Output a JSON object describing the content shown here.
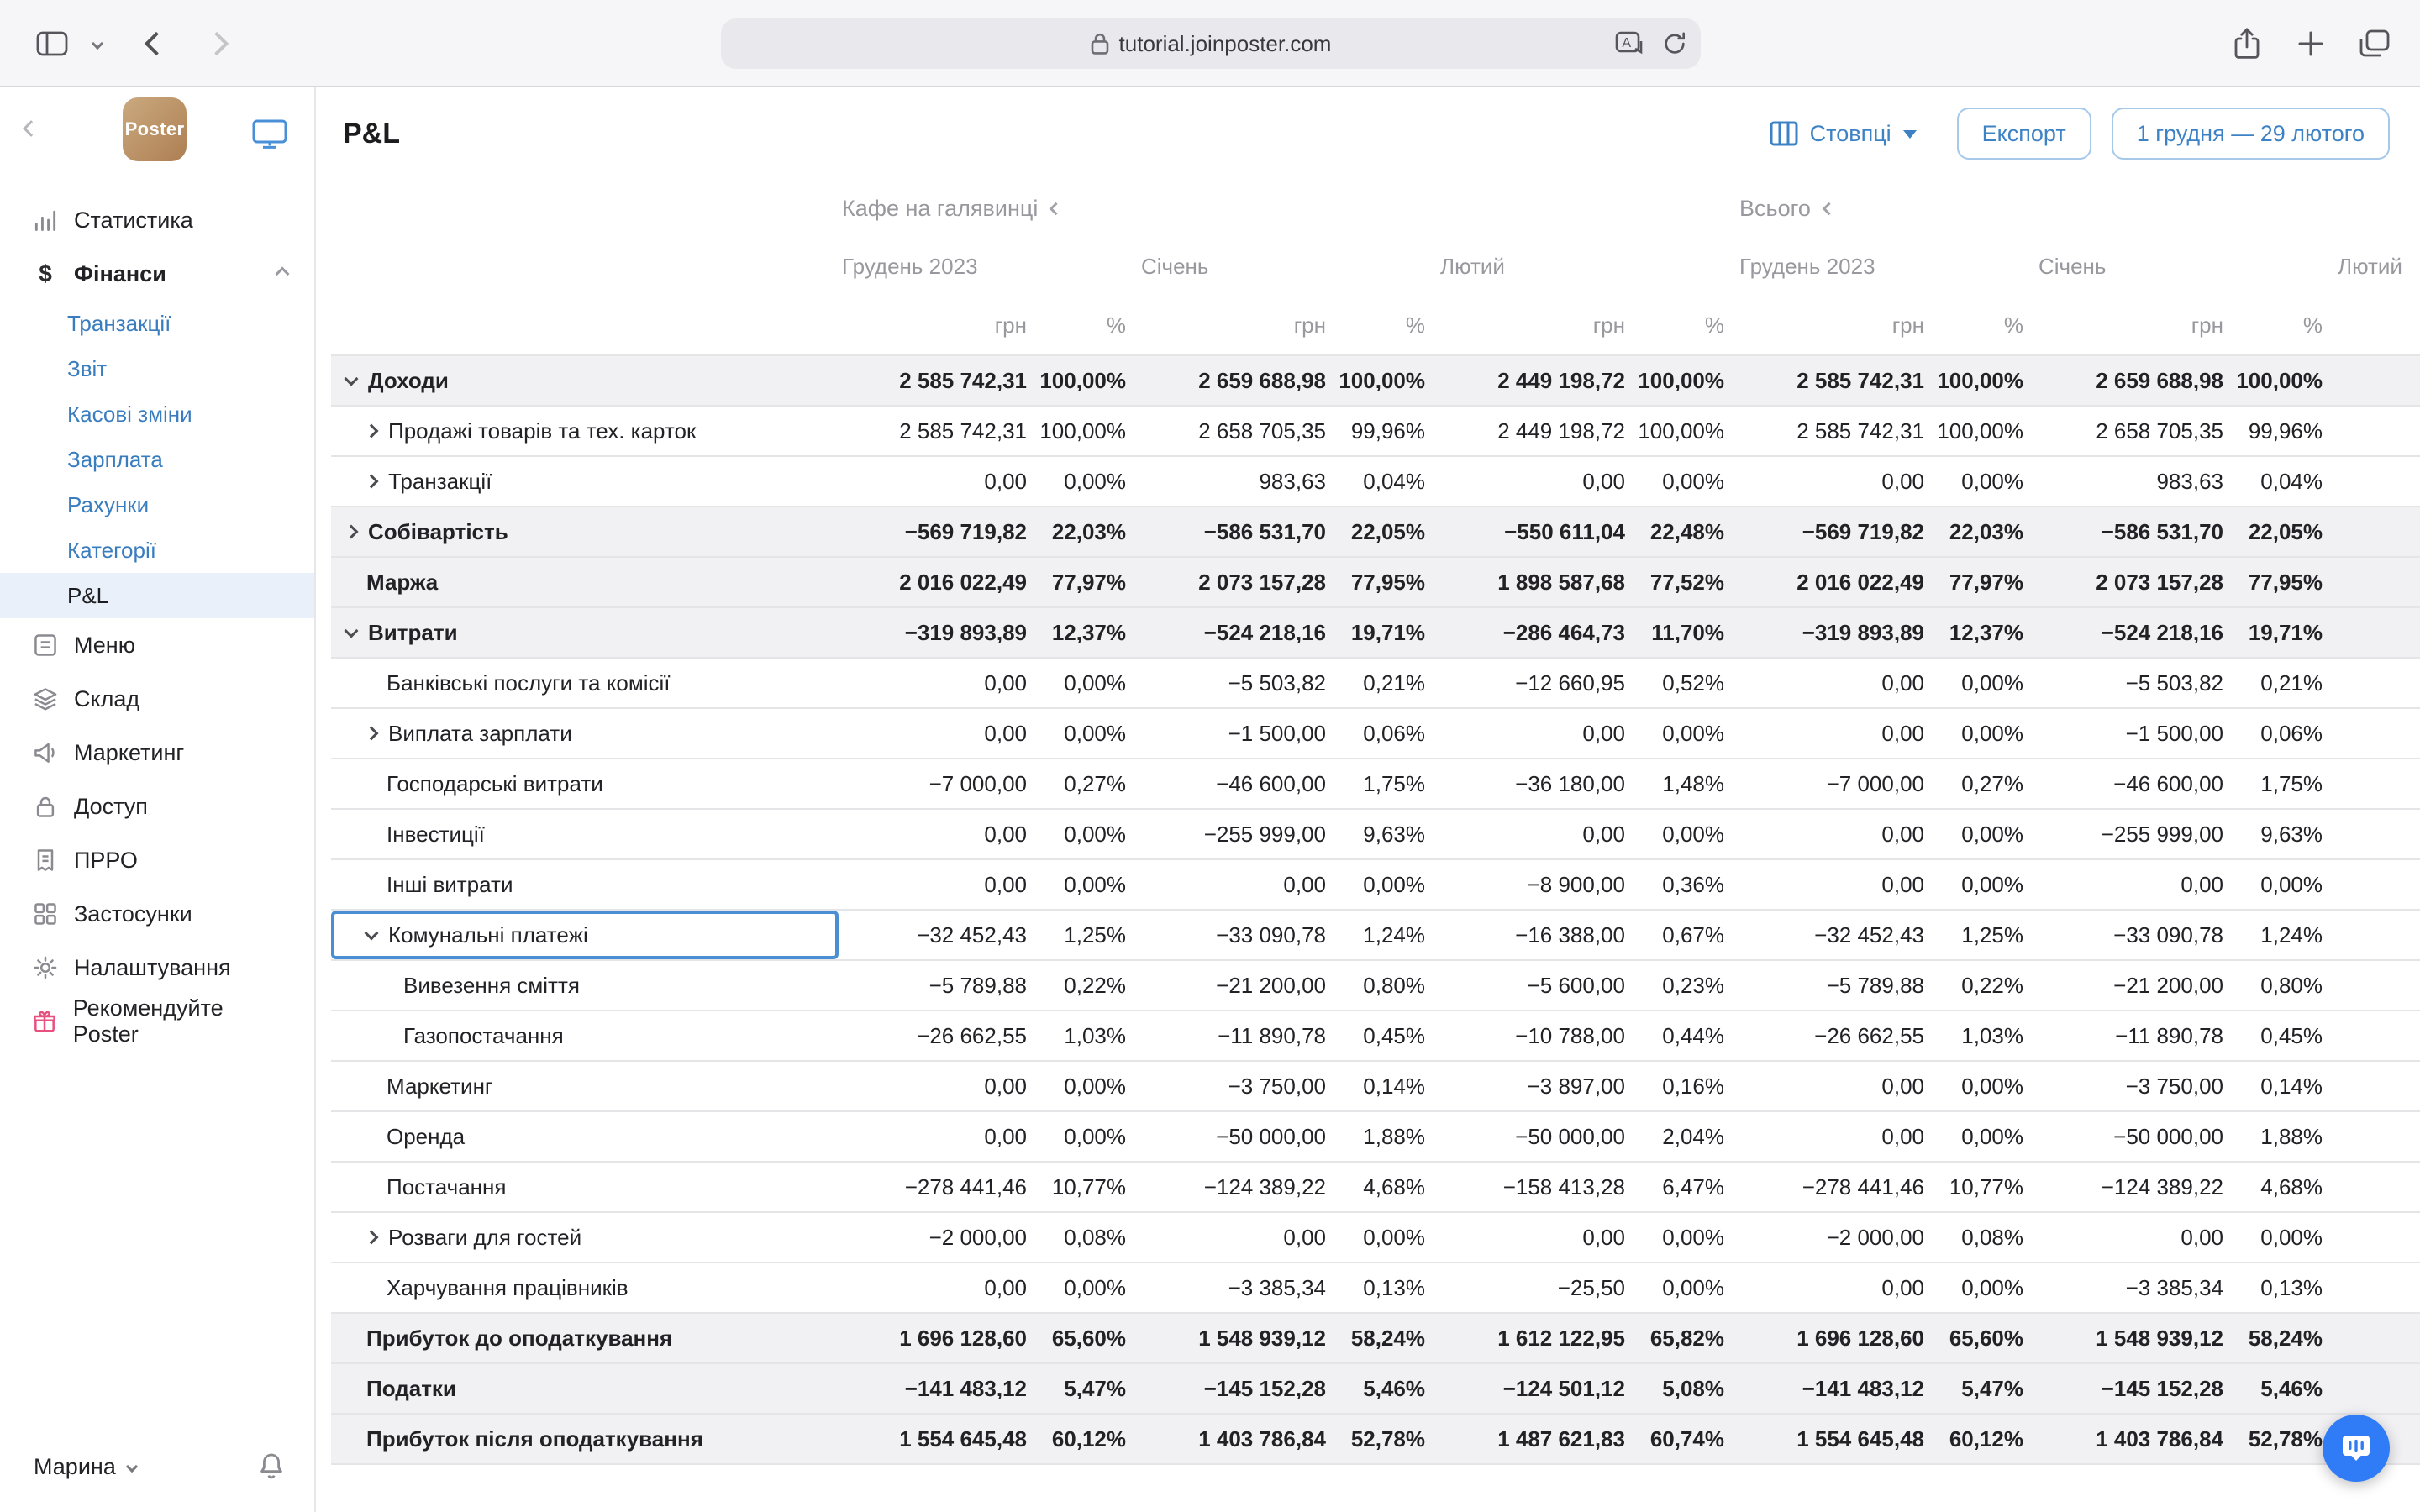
{
  "browser": {
    "url": "tutorial.joinposter.com"
  },
  "colors": {
    "accent": "#3d82c4",
    "active_sidebar_item_bg": "#e9f0fa",
    "selected_cell_border": "#4a8fd3",
    "shaded_row_bg": "#f1f1f4",
    "chat_button": "#2f7cf6",
    "recommend_icon": "#e8517e"
  },
  "sidebar": {
    "items": [
      {
        "id": "statistics",
        "label": "Статистика",
        "icon": "bar-chart-icon",
        "kind": "top"
      },
      {
        "id": "finance",
        "label": "Фінанси",
        "icon": "dollar-icon",
        "kind": "top",
        "bold": true,
        "expanded": true
      },
      {
        "id": "transactions",
        "label": "Транзакції",
        "kind": "sub"
      },
      {
        "id": "report",
        "label": "Звіт",
        "kind": "sub"
      },
      {
        "id": "cash-shifts",
        "label": "Касові зміни",
        "kind": "sub"
      },
      {
        "id": "salary",
        "label": "Зарплата",
        "kind": "sub"
      },
      {
        "id": "accounts",
        "label": "Рахунки",
        "kind": "sub"
      },
      {
        "id": "categories",
        "label": "Категорії",
        "kind": "sub"
      },
      {
        "id": "pnl",
        "label": "P&L",
        "kind": "sub",
        "active": true
      },
      {
        "id": "menu",
        "label": "Меню",
        "icon": "menu-icon",
        "kind": "top"
      },
      {
        "id": "stock",
        "label": "Склад",
        "icon": "layers-icon",
        "kind": "top"
      },
      {
        "id": "marketing",
        "label": "Маркетинг",
        "icon": "megaphone-icon",
        "kind": "top"
      },
      {
        "id": "access",
        "label": "Доступ",
        "icon": "lock-icon",
        "kind": "top"
      },
      {
        "id": "prro",
        "label": "ПРРО",
        "icon": "receipt-icon",
        "kind": "top"
      },
      {
        "id": "apps",
        "label": "Застосунки",
        "icon": "apps-grid-icon",
        "kind": "top"
      },
      {
        "id": "settings",
        "label": "Налаштування",
        "icon": "gear-icon",
        "kind": "top"
      },
      {
        "id": "recommend",
        "label": "Рекомендуйте Poster",
        "icon": "gift-icon",
        "kind": "top",
        "pinkIcon": true
      }
    ],
    "logo_text": "Poster",
    "user": "Марина"
  },
  "header": {
    "title": "P&L",
    "columns_label": "Стовпці",
    "export_label": "Експорт",
    "date_range": "1 грудня — 29 лютого"
  },
  "table": {
    "groups": [
      {
        "label": "Кафе на галявинці"
      },
      {
        "label": "Всього"
      }
    ],
    "months": [
      "Грудень 2023",
      "Січень",
      "Лютий",
      "Грудень 2023",
      "Січень",
      "Лютий"
    ],
    "unit_currency": "грн",
    "unit_percent": "%",
    "rows": [
      {
        "label": "Доходи",
        "level": 0,
        "chevron": "down",
        "bold": true,
        "shaded": true,
        "values": [
          "2 585 742,31",
          "100,00%",
          "2 659 688,98",
          "100,00%",
          "2 449 198,72",
          "100,00%",
          "2 585 742,31",
          "100,00%",
          "2 659 688,98",
          "100,00%"
        ]
      },
      {
        "label": "Продажі товарів та тех. карток",
        "level": 1,
        "chevron": "right",
        "values": [
          "2 585 742,31",
          "100,00%",
          "2 658 705,35",
          "99,96%",
          "2 449 198,72",
          "100,00%",
          "2 585 742,31",
          "100,00%",
          "2 658 705,35",
          "99,96%"
        ]
      },
      {
        "label": "Транзакції",
        "level": 1,
        "chevron": "right",
        "values": [
          "0,00",
          "0,00%",
          "983,63",
          "0,04%",
          "0,00",
          "0,00%",
          "0,00",
          "0,00%",
          "983,63",
          "0,04%"
        ]
      },
      {
        "label": "Собівартість",
        "level": 0,
        "chevron": "right",
        "bold": true,
        "shaded": true,
        "values": [
          "−569 719,82",
          "22,03%",
          "−586 531,70",
          "22,05%",
          "−550 611,04",
          "22,48%",
          "−569 719,82",
          "22,03%",
          "−586 531,70",
          "22,05%"
        ]
      },
      {
        "label": "Маржа",
        "level": 0,
        "bold": true,
        "shaded": true,
        "values": [
          "2 016 022,49",
          "77,97%",
          "2 073 157,28",
          "77,95%",
          "1 898 587,68",
          "77,52%",
          "2 016 022,49",
          "77,97%",
          "2 073 157,28",
          "77,95%"
        ]
      },
      {
        "label": "Витрати",
        "level": 0,
        "chevron": "down",
        "bold": true,
        "shaded": true,
        "values": [
          "−319 893,89",
          "12,37%",
          "−524 218,16",
          "19,71%",
          "−286 464,73",
          "11,70%",
          "−319 893,89",
          "12,37%",
          "−524 218,16",
          "19,71%"
        ]
      },
      {
        "label": "Банківські послуги та комісії",
        "level": 1,
        "values": [
          "0,00",
          "0,00%",
          "−5 503,82",
          "0,21%",
          "−12 660,95",
          "0,52%",
          "0,00",
          "0,00%",
          "−5 503,82",
          "0,21%"
        ]
      },
      {
        "label": "Виплата зарплати",
        "level": 1,
        "chevron": "right",
        "values": [
          "0,00",
          "0,00%",
          "−1 500,00",
          "0,06%",
          "0,00",
          "0,00%",
          "0,00",
          "0,00%",
          "−1 500,00",
          "0,06%"
        ]
      },
      {
        "label": "Господарські витрати",
        "level": 1,
        "values": [
          "−7 000,00",
          "0,27%",
          "−46 600,00",
          "1,75%",
          "−36 180,00",
          "1,48%",
          "−7 000,00",
          "0,27%",
          "−46 600,00",
          "1,75%"
        ]
      },
      {
        "label": "Інвестиції",
        "level": 1,
        "values": [
          "0,00",
          "0,00%",
          "−255 999,00",
          "9,63%",
          "0,00",
          "0,00%",
          "0,00",
          "0,00%",
          "−255 999,00",
          "9,63%"
        ]
      },
      {
        "label": "Інші витрати",
        "level": 1,
        "values": [
          "0,00",
          "0,00%",
          "0,00",
          "0,00%",
          "−8 900,00",
          "0,36%",
          "0,00",
          "0,00%",
          "0,00",
          "0,00%"
        ]
      },
      {
        "label": "Комунальні платежі",
        "level": 1,
        "chevron": "down",
        "selected": true,
        "values": [
          "−32 452,43",
          "1,25%",
          "−33 090,78",
          "1,24%",
          "−16 388,00",
          "0,67%",
          "−32 452,43",
          "1,25%",
          "−33 090,78",
          "1,24%"
        ]
      },
      {
        "label": "Вивезення сміття",
        "level": 2,
        "values": [
          "−5 789,88",
          "0,22%",
          "−21 200,00",
          "0,80%",
          "−5 600,00",
          "0,23%",
          "−5 789,88",
          "0,22%",
          "−21 200,00",
          "0,80%"
        ]
      },
      {
        "label": "Газопостачання",
        "level": 2,
        "values": [
          "−26 662,55",
          "1,03%",
          "−11 890,78",
          "0,45%",
          "−10 788,00",
          "0,44%",
          "−26 662,55",
          "1,03%",
          "−11 890,78",
          "0,45%"
        ]
      },
      {
        "label": "Маркетинг",
        "level": 1,
        "values": [
          "0,00",
          "0,00%",
          "−3 750,00",
          "0,14%",
          "−3 897,00",
          "0,16%",
          "0,00",
          "0,00%",
          "−3 750,00",
          "0,14%"
        ]
      },
      {
        "label": "Оренда",
        "level": 1,
        "values": [
          "0,00",
          "0,00%",
          "−50 000,00",
          "1,88%",
          "−50 000,00",
          "2,04%",
          "0,00",
          "0,00%",
          "−50 000,00",
          "1,88%"
        ]
      },
      {
        "label": "Постачання",
        "level": 1,
        "values": [
          "−278 441,46",
          "10,77%",
          "−124 389,22",
          "4,68%",
          "−158 413,28",
          "6,47%",
          "−278 441,46",
          "10,77%",
          "−124 389,22",
          "4,68%"
        ]
      },
      {
        "label": "Розваги для гостей",
        "level": 1,
        "chevron": "right",
        "values": [
          "−2 000,00",
          "0,08%",
          "0,00",
          "0,00%",
          "0,00",
          "0,00%",
          "−2 000,00",
          "0,08%",
          "0,00",
          "0,00%"
        ]
      },
      {
        "label": "Харчування працівників",
        "level": 1,
        "values": [
          "0,00",
          "0,00%",
          "−3 385,34",
          "0,13%",
          "−25,50",
          "0,00%",
          "0,00",
          "0,00%",
          "−3 385,34",
          "0,13%"
        ]
      },
      {
        "label": "Прибуток до оподаткування",
        "level": 0,
        "bold": true,
        "shaded": true,
        "values": [
          "1 696 128,60",
          "65,60%",
          "1 548 939,12",
          "58,24%",
          "1 612 122,95",
          "65,82%",
          "1 696 128,60",
          "65,60%",
          "1 548 939,12",
          "58,24%"
        ]
      },
      {
        "label": "Податки",
        "level": 0,
        "bold": true,
        "shaded": true,
        "values": [
          "−141 483,12",
          "5,47%",
          "−145 152,28",
          "5,46%",
          "−124 501,12",
          "5,08%",
          "−141 483,12",
          "5,47%",
          "−145 152,28",
          "5,46%"
        ]
      },
      {
        "label": "Прибуток після оподаткування",
        "level": 0,
        "bold": true,
        "shaded": true,
        "values": [
          "1 554 645,48",
          "60,12%",
          "1 403 786,84",
          "52,78%",
          "1 487 621,83",
          "60,74%",
          "1 554 645,48",
          "60,12%",
          "1 403 786,84",
          "52,78%"
        ]
      }
    ]
  }
}
